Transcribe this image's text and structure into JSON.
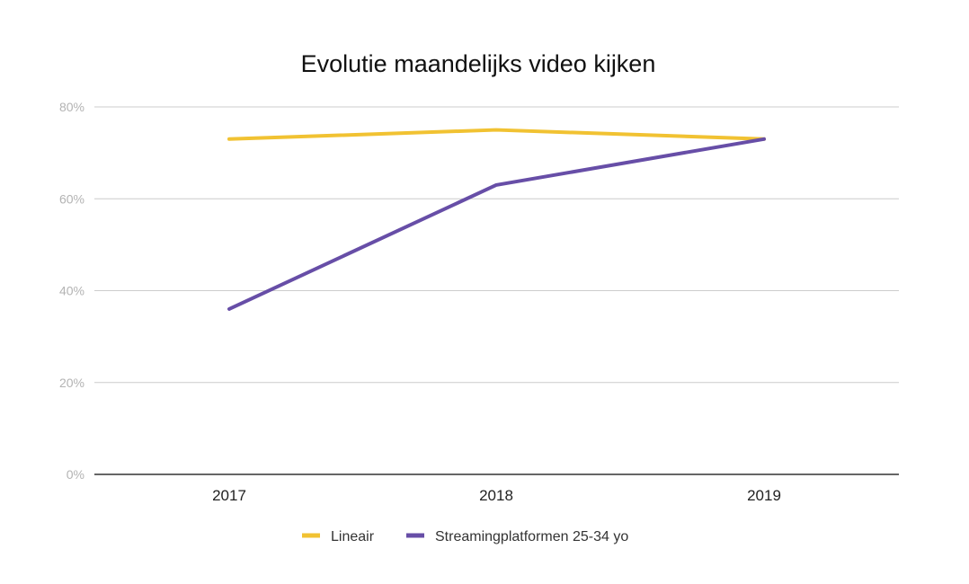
{
  "chart_data": {
    "type": "line",
    "title": "Evolutie maandelijks video kijken",
    "xlabel": "",
    "ylabel": "",
    "categories": [
      "2017",
      "2018",
      "2019"
    ],
    "ylim": [
      0,
      80
    ],
    "y_ticks": [
      "0%",
      "20%",
      "40%",
      "60%",
      "80%"
    ],
    "y_tick_values": [
      0,
      20,
      40,
      60,
      80
    ],
    "grid": true,
    "legend_position": "bottom",
    "series": [
      {
        "name": "Lineair",
        "values": [
          73,
          75,
          73
        ],
        "color": "#f1c232"
      },
      {
        "name": "Streamingplatformen 25-34 yo",
        "values": [
          36,
          63,
          73
        ],
        "color": "#674ea7"
      }
    ]
  }
}
